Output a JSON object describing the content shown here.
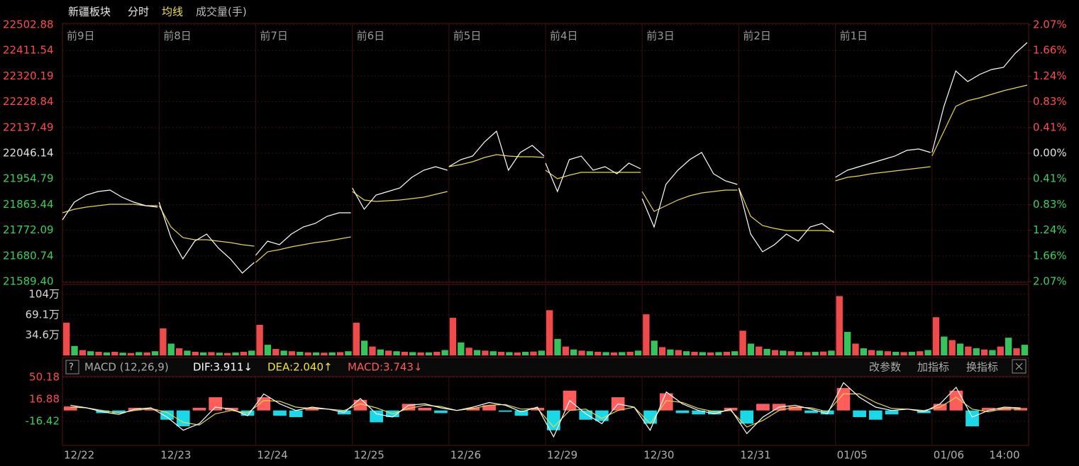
{
  "chart_data": {
    "type": "intraday",
    "title": "新疆板块",
    "tabs": [
      "分时",
      "均线",
      "成交量(手)"
    ],
    "colors": {
      "price": "#ffffff",
      "avg": "#e6d64a",
      "up": "#ff4b4b",
      "down": "#3ccf5a",
      "flat": "#e0e0e0",
      "vol_up": "#f04b4b",
      "vol_down": "#35c45a",
      "hist_up": "#ff5c5c",
      "hist_down": "#19d8e8",
      "dif": "#ffffff",
      "dea": "#e6d64a"
    },
    "day_labels": [
      "前9日",
      "前8日",
      "前7日",
      "前6日",
      "前5日",
      "前4日",
      "前3日",
      "前2日",
      "前1日"
    ],
    "dates": [
      "12/22",
      "12/23",
      "12/24",
      "12/25",
      "12/26",
      "12/29",
      "12/30",
      "12/31",
      "01/05",
      "01/06"
    ],
    "time_label": "14:00",
    "ylim": [
      21589.4,
      22502.88
    ],
    "yticks": [
      22502.88,
      22411.54,
      22320.19,
      22228.84,
      22137.49,
      22046.14,
      21954.79,
      21863.44,
      21772.09,
      21680.74,
      {
        "value": 21589.4,
        "label": "21589.40"
      }
    ],
    "y2lim": [
      -2.07,
      2.07
    ],
    "y2ticks": [
      {
        "value": 2.07,
        "label": "2.07%"
      },
      {
        "value": 1.66,
        "label": "1.66%"
      },
      {
        "value": 1.24,
        "label": "1.24%"
      },
      {
        "value": 0.83,
        "label": "0.83%"
      },
      {
        "value": 0.41,
        "label": "0.41%"
      },
      {
        "value": 0,
        "label": "0.00%"
      },
      {
        "value": -0.41,
        "label": "0.41%"
      },
      {
        "value": -0.83,
        "label": "0.83%"
      },
      {
        "value": -1.24,
        "label": "1.24%"
      },
      {
        "value": -1.66,
        "label": "1.66%"
      },
      {
        "value": -2.07,
        "label": "2.07%"
      }
    ],
    "days": [
      {
        "price": [
          21809.0,
          21872.0,
          21897.3,
          21909.9,
          21914.9,
          21889.7,
          21872.0,
          21859.4,
          21854.4
        ],
        "avg": [
          21834.2,
          21846.8,
          21854.4,
          21859.4,
          21864.5,
          21864.5,
          21864.5,
          21859.4,
          21859.4
        ]
      },
      {
        "price": [
          21872.0,
          21745.9,
          21670.2,
          21733.3,
          21758.5,
          21708.0,
          21670.2,
          21619.7,
          21657.6
        ],
        "avg": [
          21859.4,
          21783.7,
          21745.9,
          21738.3,
          21738.3,
          21733.3,
          21728.2,
          21720.6,
          21715.6
        ]
      },
      {
        "price": [
          21682.8,
          21733.3,
          21720.6,
          21758.5,
          21783.7,
          21796.3,
          21821.6,
          21834.2,
          21834.2
        ],
        "avg": [
          21657.6,
          21695.4,
          21703.0,
          21713.1,
          21720.6,
          21728.2,
          21733.3,
          21740.8,
          21748.4
        ]
      },
      {
        "price": [
          21922.5,
          21846.8,
          21897.3,
          21909.9,
          21922.5,
          21960.4,
          21985.6,
          21998.2,
          21985.6
        ],
        "avg": [
          21909.9,
          21879.6,
          21874.6,
          21877.1,
          21879.6,
          21884.7,
          21889.7,
          21899.8,
          21909.9
        ]
      },
      {
        "price": [
          21998.2,
          22023.5,
          22036.1,
          22086.5,
          22124.4,
          21985.6,
          22048.7,
          22073.9,
          22036.1
        ],
        "avg": [
          21998.2,
          22005.8,
          22015.9,
          22031.0,
          22041.1,
          22036.1,
          22033.5,
          22033.5,
          22031.0
        ]
      },
      {
        "price": [
          22010.8,
          21909.9,
          22023.5,
          22036.1,
          21985.6,
          21998.2,
          21973.0,
          22010.8,
          21990.6
        ],
        "avg": [
          21985.6,
          21955.3,
          21967.9,
          21978.0,
          21978.0,
          21978.0,
          21978.0,
          21978.0,
          21978.0
        ]
      },
      {
        "price": [
          21884.7,
          21783.7,
          21935.1,
          21985.6,
          22023.5,
          22048.7,
          21973.0,
          21947.8,
          21935.1
        ],
        "avg": [
          21909.9,
          21839.2,
          21859.4,
          21879.6,
          21894.8,
          21904.9,
          21909.9,
          21914.9,
          21914.9
        ]
      },
      {
        "price": [
          21922.5,
          21758.5,
          21695.4,
          21720.6,
          21758.5,
          21733.3,
          21783.7,
          21796.3,
          21763.5
        ],
        "avg": [
          21922.5,
          21821.6,
          21788.8,
          21778.7,
          21771.1,
          21771.1,
          21771.1,
          21771.1,
          21768.6
        ]
      },
      {
        "price": [
          21960.4,
          21985.6,
          21998.2,
          22010.8,
          22023.5,
          22036.1,
          22056.3,
          22061.3,
          22048.7
        ],
        "avg": [
          21947.8,
          21960.4,
          21965.4,
          21973.0,
          21978.0,
          21983.1,
          21988.1,
          21993.2,
          21998.2
        ]
      },
      {
        "price": [
          22048.7,
          22212.7,
          22338.9,
          22301.0,
          22326.3,
          22343.9,
          22351.5,
          22402.0,
          22439.8
        ],
        "avg": [
          22036.1,
          22124.4,
          22212.7,
          22232.9,
          22243.0,
          22255.6,
          22268.2,
          22278.3,
          22288.4
        ]
      }
    ],
    "volume": {
      "ylim": [
        0,
        1040000
      ],
      "yticks": [
        {
          "value": 1040000,
          "label": "104万"
        },
        {
          "value": 691000,
          "label": "69.1万"
        },
        {
          "value": 346000,
          "label": "34.6万"
        }
      ],
      "values": [
        [
          556000,
          160000,
          90000,
          70000,
          60000,
          50000,
          60000,
          45000,
          40000,
          55000,
          50000,
          70000
        ],
        [
          460000,
          200000,
          120000,
          80000,
          60000,
          50000,
          55000,
          45000,
          40000,
          50000,
          60000,
          80000
        ],
        [
          520000,
          180000,
          110000,
          80000,
          70000,
          60000,
          50000,
          50000,
          45000,
          50000,
          55000,
          70000
        ],
        [
          556000,
          250000,
          150000,
          100000,
          80000,
          70000,
          60000,
          55000,
          50000,
          50000,
          60000,
          90000
        ],
        [
          640000,
          220000,
          130000,
          90000,
          80000,
          70000,
          60000,
          55000,
          50000,
          60000,
          65000,
          80000
        ],
        [
          770000,
          280000,
          150000,
          100000,
          80000,
          70000,
          60000,
          55000,
          50000,
          55000,
          60000,
          80000
        ],
        [
          700000,
          250000,
          140000,
          100000,
          90000,
          70000,
          60000,
          55000,
          50000,
          55000,
          60000,
          70000
        ],
        [
          420000,
          200000,
          150000,
          110000,
          90000,
          80000,
          70000,
          60000,
          55000,
          60000,
          65000,
          80000
        ],
        [
          1010000,
          400000,
          200000,
          120000,
          90000,
          80000,
          70000,
          60000,
          55000,
          60000,
          70000,
          90000
        ],
        [
          650000,
          320000,
          260000,
          200000,
          150000,
          120000,
          100000,
          90000,
          150000,
          300000,
          120000,
          180000
        ]
      ]
    },
    "macd": {
      "title": "MACD (12,26,9)",
      "dif_label": "DIF:3.911↓",
      "dea_label": "DEA:2.040↑",
      "macd_label": "MACD:3.743↓",
      "buttons": [
        "改参数",
        "加指标",
        "换指标"
      ],
      "ylim": [
        -51.9,
        50.18
      ],
      "yticks": [
        50.18,
        16.88,
        -16.42
      ],
      "dif": [
        8,
        4,
        -2,
        -6,
        2,
        4,
        -10,
        -30,
        -20,
        5,
        2,
        -8,
        25,
        10,
        0,
        5,
        2,
        -3,
        18,
        -5,
        -10,
        8,
        10,
        4,
        0,
        5,
        12,
        8,
        -2,
        5,
        -40,
        15,
        -5,
        -20,
        10,
        5,
        -30,
        28,
        10,
        0,
        -5,
        2,
        -35,
        -10,
        5,
        8,
        2,
        -5,
        42,
        20,
        5,
        0,
        2,
        -2,
        10,
        35,
        -10,
        0,
        5,
        3.911
      ],
      "dea": [
        5,
        4,
        0,
        -4,
        0,
        3,
        -3,
        -18,
        -22,
        -5,
        0,
        -4,
        15,
        14,
        5,
        3,
        2,
        0,
        10,
        4,
        -5,
        3,
        8,
        6,
        0,
        3,
        8,
        9,
        2,
        3,
        -25,
        0,
        2,
        -12,
        0,
        5,
        -20,
        15,
        12,
        3,
        -2,
        0,
        -25,
        -15,
        0,
        5,
        4,
        -2,
        25,
        25,
        12,
        3,
        2,
        0,
        5,
        20,
        2,
        -2,
        3,
        2.04
      ],
      "hist": [
        6,
        0,
        -4,
        -4,
        4,
        2,
        -14,
        -24,
        4,
        20,
        4,
        -8,
        20,
        -8,
        -10,
        4,
        0,
        -6,
        16,
        -18,
        -10,
        10,
        4,
        -4,
        0,
        4,
        8,
        -2,
        -8,
        4,
        -30,
        30,
        -14,
        -16,
        20,
        0,
        -20,
        26,
        -4,
        -6,
        -6,
        4,
        -20,
        10,
        10,
        6,
        -4,
        -6,
        34,
        -10,
        -14,
        -6,
        0,
        -4,
        10,
        30,
        -24,
        4,
        4,
        3.743
      ]
    }
  }
}
